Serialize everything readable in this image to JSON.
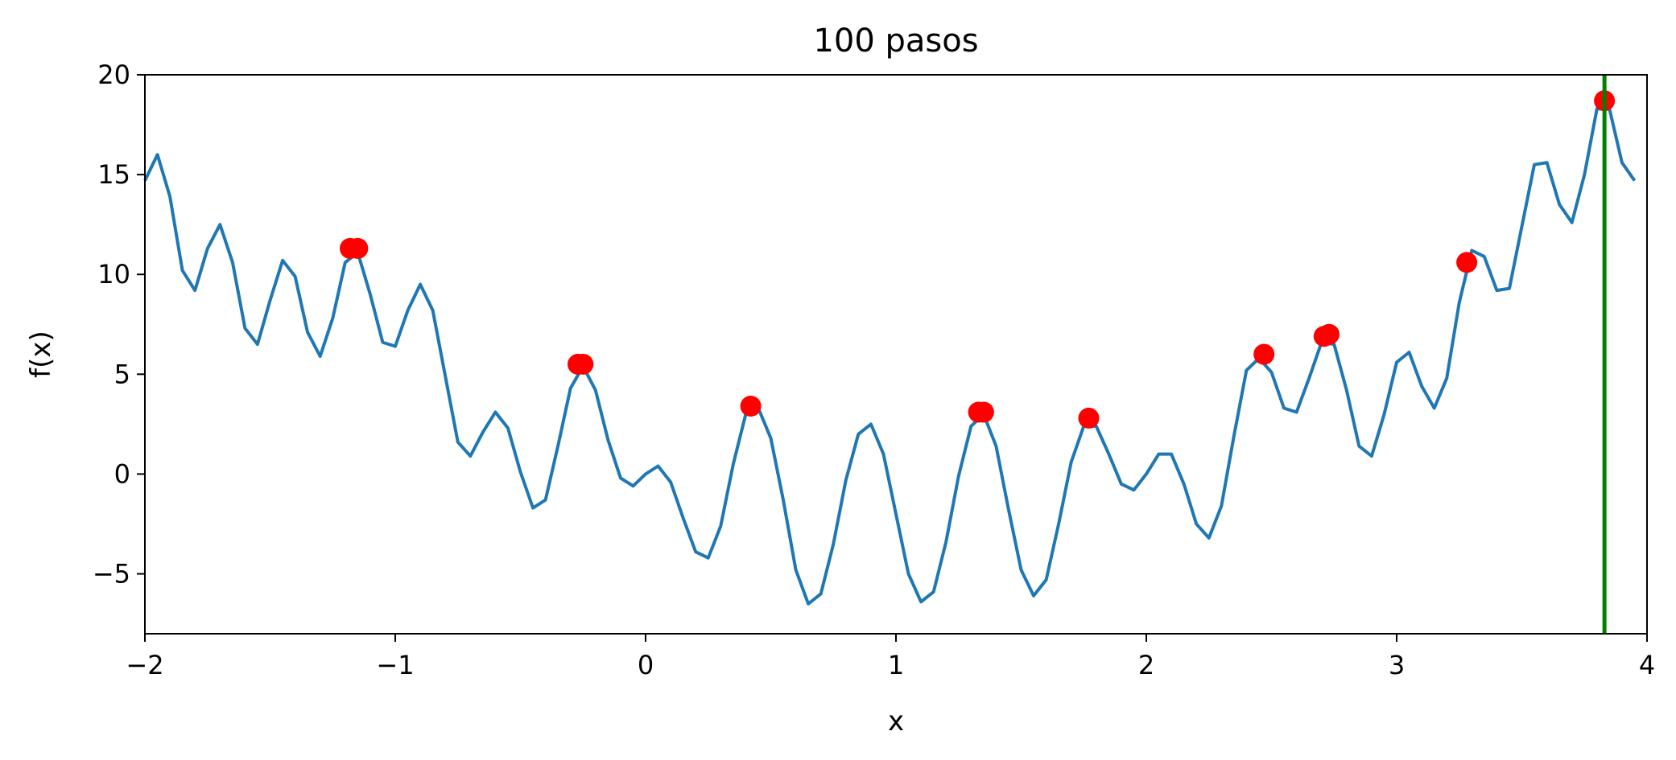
{
  "chart_data": {
    "type": "line",
    "title": "100 pasos",
    "xlabel": "x",
    "ylabel": "f(x)",
    "xlim": [
      -2,
      4
    ],
    "ylim": [
      -8,
      20
    ],
    "xticks": [
      -2,
      -1,
      0,
      1,
      2,
      3,
      4
    ],
    "xtick_labels": [
      "−2",
      "−1",
      "0",
      "1",
      "2",
      "3",
      "4"
    ],
    "yticks": [
      -5,
      0,
      5,
      10,
      15,
      20
    ],
    "ytick_labels": [
      "−5",
      "0",
      "5",
      "10",
      "15",
      "20"
    ],
    "grid": false,
    "series": [
      {
        "color": "#1f77b4",
        "x": [
          -2.0,
          -1.95,
          -1.9,
          -1.85,
          -1.8,
          -1.75,
          -1.7,
          -1.65,
          -1.6,
          -1.55,
          -1.5,
          -1.45,
          -1.4,
          -1.35,
          -1.3,
          -1.25,
          -1.2,
          -1.15,
          -1.1,
          -1.05,
          -1.0,
          -0.95,
          -0.9,
          -0.85,
          -0.8,
          -0.75,
          -0.7,
          -0.65,
          -0.6,
          -0.55,
          -0.5,
          -0.45,
          -0.4,
          -0.35,
          -0.3,
          -0.25,
          -0.2,
          -0.15,
          -0.1,
          -0.05,
          0.0,
          0.05,
          0.1,
          0.15,
          0.2,
          0.25,
          0.3,
          0.35,
          0.4,
          0.45,
          0.5,
          0.55,
          0.6,
          0.65,
          0.7,
          0.75,
          0.8,
          0.85,
          0.9,
          0.95,
          1.0,
          1.05,
          1.1,
          1.15,
          1.2,
          1.25,
          1.3,
          1.35,
          1.4,
          1.45,
          1.5,
          1.55,
          1.6,
          1.65,
          1.7,
          1.75,
          1.8,
          1.85,
          1.9,
          1.95,
          2.0,
          2.05,
          2.1,
          2.15,
          2.2,
          2.25,
          2.3,
          2.35,
          2.4,
          2.45,
          2.5,
          2.55,
          2.6,
          2.65,
          2.7,
          2.75,
          2.8,
          2.85,
          2.9,
          2.95,
          3.0,
          3.05,
          3.1,
          3.15,
          3.2,
          3.25,
          3.3,
          3.35,
          3.4,
          3.45,
          3.5,
          3.55,
          3.6,
          3.65,
          3.7,
          3.75,
          3.8,
          3.85,
          3.9,
          3.95
        ],
        "values": [
          14.7,
          16.0,
          13.9,
          10.2,
          9.2,
          11.3,
          12.5,
          10.6,
          7.3,
          6.5,
          8.7,
          10.7,
          9.9,
          7.1,
          5.9,
          7.8,
          10.6,
          11.1,
          9.0,
          6.6,
          6.4,
          8.2,
          9.5,
          8.2,
          4.9,
          1.6,
          0.9,
          2.1,
          3.1,
          2.3,
          0.1,
          -1.7,
          -1.3,
          1.4,
          4.3,
          5.4,
          4.2,
          1.7,
          -0.2,
          -0.6,
          0.0,
          0.4,
          -0.4,
          -2.2,
          -3.9,
          -4.2,
          -2.6,
          0.5,
          3.0,
          3.3,
          1.8,
          -1.3,
          -4.8,
          -6.5,
          -6.0,
          -3.5,
          -0.3,
          2.0,
          2.5,
          1.0,
          -2.0,
          -5.0,
          -6.4,
          -5.9,
          -3.4,
          -0.1,
          2.4,
          3.0,
          1.4,
          -1.8,
          -4.8,
          -6.1,
          -5.3,
          -2.5,
          0.6,
          2.4,
          2.4,
          1.0,
          -0.5,
          -0.8,
          0.0,
          1.0,
          1.0,
          -0.5,
          -2.5,
          -3.2,
          -1.6,
          1.9,
          5.2,
          5.8,
          5.1,
          3.3,
          3.1,
          4.8,
          6.6,
          6.5,
          4.2,
          1.4,
          0.9,
          3.0,
          5.6,
          6.1,
          4.4,
          3.3,
          4.8,
          8.6,
          11.2,
          10.9,
          9.2,
          9.3,
          12.4,
          15.5,
          15.6,
          13.5,
          12.6,
          15.0,
          18.3,
          18.3,
          15.6,
          14.7
        ]
      }
    ],
    "points": {
      "color": "#ff0000",
      "x": [
        -1.18,
        -1.15,
        -0.27,
        -0.25,
        0.42,
        1.33,
        1.35,
        1.77,
        2.47,
        2.71,
        2.73,
        3.28,
        3.83
      ],
      "y": [
        11.3,
        11.3,
        5.5,
        5.5,
        3.4,
        3.1,
        3.1,
        2.8,
        6.0,
        6.9,
        7.0,
        10.6,
        18.7
      ]
    },
    "vline": {
      "x": 3.83,
      "color": "#008000"
    }
  }
}
